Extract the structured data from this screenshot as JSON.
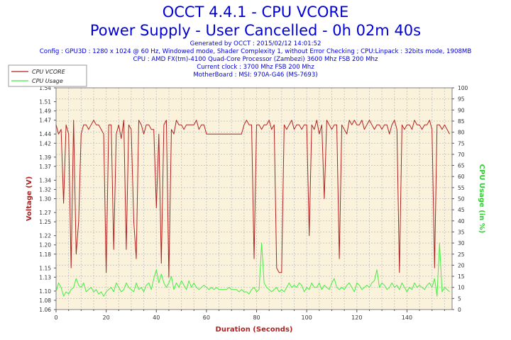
{
  "title": "OCCT 4.4.1 - CPU VCORE",
  "subtitle": "Power Supply - User Cancelled - 0h 02m 40s",
  "info_lines": [
    "Generated by OCCT : 2015/02/12 14:01:52",
    "Config : GPU3D : 1280 x 1024 @ 60 Hz, Windowed mode, Shader Complexity 1, without Error Checking ; CPU:Linpack : 32bits mode, 1908MB",
    "CPU : AMD FX(tm)-4100 Quad-Core Processor (Zambezi) 3600 Mhz FSB 200 Mhz",
    "Current clock : 3700 Mhz FSB 200 Mhz",
    "MotherBoard : MSI: 970A-G46 (MS-7693)"
  ],
  "colors": {
    "title": "#0000d8",
    "plot_bg": "#fbf2dc",
    "grid": "#c8c8c8",
    "voltage": "#b22020",
    "cpu_usage": "#44ee44",
    "axis_left_label": "#b22020",
    "axis_right_label": "#33cc33",
    "axis_x_label": "#b22020"
  },
  "chart_data": {
    "type": "line",
    "xlabel": "Duration (Seconds)",
    "ylabel": "Voltage (V)",
    "y2label": "CPU Usage (in %)",
    "xlim": [
      0,
      158
    ],
    "ylim": [
      1.06,
      1.54
    ],
    "y2lim": [
      0,
      100
    ],
    "x_ticks": [
      0,
      20,
      40,
      60,
      80,
      100,
      120,
      140
    ],
    "y_ticks": [
      "1.06",
      "1.08",
      "1.10",
      "1.13",
      "1.15",
      "1.18",
      "1.20",
      "1.22",
      "1.25",
      "1.27",
      "1.30",
      "1.32",
      "1.34",
      "1.37",
      "1.39",
      "1.42",
      "1.44",
      "1.47",
      "1.49",
      "1.51",
      "1.54"
    ],
    "y_tick_values": [
      1.06,
      1.08,
      1.1,
      1.13,
      1.15,
      1.18,
      1.2,
      1.22,
      1.25,
      1.27,
      1.3,
      1.32,
      1.34,
      1.37,
      1.39,
      1.42,
      1.44,
      1.47,
      1.49,
      1.51,
      1.54
    ],
    "y2_ticks": [
      0,
      5,
      10,
      15,
      20,
      25,
      30,
      35,
      40,
      45,
      50,
      55,
      60,
      65,
      70,
      75,
      80,
      85,
      90,
      95,
      100
    ],
    "legend_position": "top-left",
    "grid": true,
    "series": [
      {
        "name": "CPU VCORE",
        "axis": "left",
        "x": [
          0,
          1,
          2,
          3,
          4,
          5,
          6,
          7,
          8,
          9,
          10,
          11,
          12,
          13,
          14,
          15,
          16,
          17,
          18,
          19,
          20,
          21,
          22,
          23,
          24,
          25,
          26,
          27,
          28,
          29,
          30,
          31,
          32,
          33,
          34,
          35,
          36,
          37,
          38,
          39,
          40,
          41,
          42,
          43,
          44,
          45,
          46,
          47,
          48,
          49,
          50,
          51,
          52,
          53,
          54,
          55,
          56,
          57,
          58,
          59,
          60,
          61,
          62,
          63,
          64,
          65,
          66,
          67,
          68,
          69,
          70,
          71,
          72,
          73,
          74,
          75,
          76,
          77,
          78,
          79,
          80,
          81,
          82,
          83,
          84,
          85,
          86,
          87,
          88,
          89,
          90,
          91,
          92,
          93,
          94,
          95,
          96,
          97,
          98,
          99,
          100,
          101,
          102,
          103,
          104,
          105,
          106,
          107,
          108,
          109,
          110,
          111,
          112,
          113,
          114,
          115,
          116,
          117,
          118,
          119,
          120,
          121,
          122,
          123,
          124,
          125,
          126,
          127,
          128,
          129,
          130,
          131,
          132,
          133,
          134,
          135,
          136,
          137,
          138,
          139,
          140,
          141,
          142,
          143,
          144,
          145,
          146,
          147,
          148,
          149,
          150,
          151,
          152,
          153,
          154,
          155,
          156,
          157
        ],
        "values": [
          1.46,
          1.44,
          1.45,
          1.29,
          1.46,
          1.44,
          1.15,
          1.47,
          1.18,
          1.25,
          1.44,
          1.46,
          1.46,
          1.45,
          1.46,
          1.47,
          1.46,
          1.46,
          1.45,
          1.44,
          1.14,
          1.46,
          1.46,
          1.19,
          1.44,
          1.46,
          1.43,
          1.47,
          1.19,
          1.46,
          1.45,
          1.25,
          1.17,
          1.47,
          1.46,
          1.44,
          1.46,
          1.46,
          1.45,
          1.45,
          1.28,
          1.44,
          1.16,
          1.46,
          1.47,
          1.13,
          1.45,
          1.44,
          1.47,
          1.46,
          1.46,
          1.45,
          1.46,
          1.46,
          1.46,
          1.46,
          1.47,
          1.45,
          1.46,
          1.46,
          1.44,
          1.44,
          1.44,
          1.44,
          1.44,
          1.44,
          1.44,
          1.44,
          1.44,
          1.44,
          1.44,
          1.44,
          1.44,
          1.44,
          1.44,
          1.46,
          1.47,
          1.46,
          1.46,
          1.17,
          1.46,
          1.46,
          1.45,
          1.46,
          1.46,
          1.47,
          1.45,
          1.46,
          1.15,
          1.14,
          1.14,
          1.46,
          1.45,
          1.46,
          1.47,
          1.45,
          1.46,
          1.46,
          1.45,
          1.46,
          1.46,
          1.22,
          1.46,
          1.45,
          1.47,
          1.44,
          1.46,
          1.3,
          1.47,
          1.46,
          1.45,
          1.46,
          1.46,
          1.17,
          1.46,
          1.45,
          1.44,
          1.47,
          1.46,
          1.47,
          1.46,
          1.46,
          1.47,
          1.45,
          1.46,
          1.47,
          1.46,
          1.45,
          1.46,
          1.46,
          1.45,
          1.46,
          1.46,
          1.44,
          1.46,
          1.47,
          1.45,
          1.14,
          1.46,
          1.45,
          1.46,
          1.46,
          1.45,
          1.47,
          1.46,
          1.46,
          1.45,
          1.46,
          1.46,
          1.47,
          1.45,
          1.15,
          1.46,
          1.46,
          1.45,
          1.46,
          1.45,
          1.44
        ],
        "color": "#b22020"
      },
      {
        "name": "CPU Usage",
        "axis": "right",
        "x": [
          0,
          1,
          2,
          3,
          4,
          5,
          6,
          7,
          8,
          9,
          10,
          11,
          12,
          13,
          14,
          15,
          16,
          17,
          18,
          19,
          20,
          21,
          22,
          23,
          24,
          25,
          26,
          27,
          28,
          29,
          30,
          31,
          32,
          33,
          34,
          35,
          36,
          37,
          38,
          39,
          40,
          41,
          42,
          43,
          44,
          45,
          46,
          47,
          48,
          49,
          50,
          51,
          52,
          53,
          54,
          55,
          56,
          57,
          58,
          59,
          60,
          61,
          62,
          63,
          64,
          65,
          66,
          67,
          68,
          69,
          70,
          71,
          72,
          73,
          74,
          75,
          76,
          77,
          78,
          79,
          80,
          81,
          82,
          83,
          84,
          85,
          86,
          87,
          88,
          89,
          90,
          91,
          92,
          93,
          94,
          95,
          96,
          97,
          98,
          99,
          100,
          101,
          102,
          103,
          104,
          105,
          106,
          107,
          108,
          109,
          110,
          111,
          112,
          113,
          114,
          115,
          116,
          117,
          118,
          119,
          120,
          121,
          122,
          123,
          124,
          125,
          126,
          127,
          128,
          129,
          130,
          131,
          132,
          133,
          134,
          135,
          136,
          137,
          138,
          139,
          140,
          141,
          142,
          143,
          144,
          145,
          146,
          147,
          148,
          149,
          150,
          151,
          152,
          153,
          154,
          155,
          156,
          157
        ],
        "values": [
          8,
          12,
          10,
          6,
          8,
          7,
          9,
          10,
          14,
          11,
          10,
          12,
          8,
          9,
          10,
          8,
          9,
          7,
          8,
          6,
          8,
          9,
          10,
          8,
          12,
          10,
          8,
          9,
          12,
          10,
          9,
          8,
          12,
          9,
          10,
          8,
          11,
          12,
          9,
          14,
          18,
          12,
          16,
          12,
          10,
          12,
          15,
          9,
          12,
          10,
          13,
          11,
          9,
          13,
          10,
          12,
          10,
          9,
          10,
          11,
          10,
          9,
          10,
          9,
          10,
          9,
          9,
          9,
          9,
          10,
          9,
          9,
          9,
          8,
          9,
          8,
          8,
          7,
          9,
          10,
          8,
          9,
          30,
          12,
          10,
          9,
          8,
          9,
          10,
          8,
          9,
          8,
          10,
          12,
          10,
          11,
          10,
          12,
          11,
          8,
          10,
          9,
          12,
          10,
          10,
          12,
          9,
          11,
          10,
          9,
          12,
          14,
          10,
          9,
          10,
          9,
          11,
          12,
          10,
          8,
          12,
          11,
          9,
          10,
          11,
          10,
          12,
          13,
          18,
          10,
          12,
          11,
          9,
          10,
          12,
          10,
          11,
          9,
          12,
          10,
          8,
          10,
          9,
          12,
          10,
          11,
          10,
          9,
          11,
          12,
          10,
          14,
          6,
          30,
          8,
          10,
          9,
          8
        ],
        "color": "#44ee44"
      }
    ]
  }
}
